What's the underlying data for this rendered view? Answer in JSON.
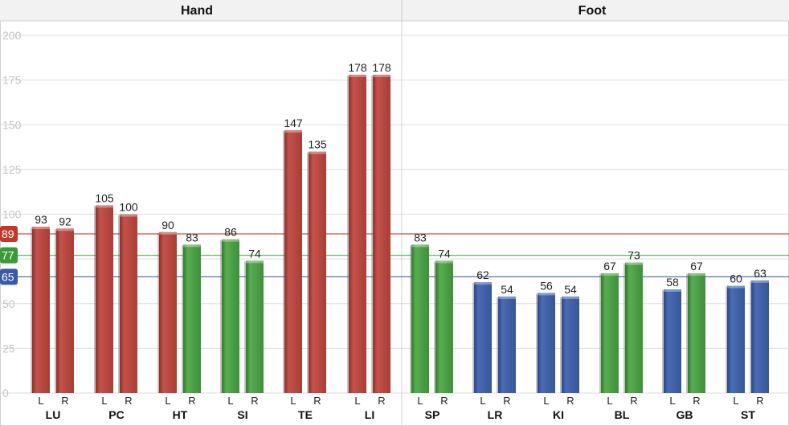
{
  "chart_data": {
    "type": "bar",
    "panels": [
      {
        "title": "Hand",
        "categories": [
          "LU",
          "PC",
          "HT",
          "SI",
          "TE",
          "LI"
        ],
        "bars": [
          {
            "L": 93,
            "R": 92
          },
          {
            "L": 105,
            "R": 100
          },
          {
            "L": 90,
            "R": 83
          },
          {
            "L": 86,
            "R": 74
          },
          {
            "L": 147,
            "R": 135
          },
          {
            "L": 178,
            "R": 178
          }
        ]
      },
      {
        "title": "Foot",
        "categories": [
          "SP",
          "LR",
          "KI",
          "BL",
          "GB",
          "ST"
        ],
        "bars": [
          {
            "L": 83,
            "R": 74
          },
          {
            "L": 62,
            "R": 54
          },
          {
            "L": 56,
            "R": 54
          },
          {
            "L": 67,
            "R": 73
          },
          {
            "L": 58,
            "R": 67
          },
          {
            "L": 60,
            "R": 63
          }
        ]
      }
    ],
    "side_labels": [
      "L",
      "R"
    ],
    "ylim": [
      0,
      200
    ],
    "yticks": [
      0,
      25,
      50,
      75,
      100,
      125,
      150,
      175,
      200
    ],
    "reference_lines": [
      {
        "label": "89",
        "value": 89,
        "color": "#c0392b"
      },
      {
        "label": "77",
        "value": 77,
        "color": "#3a9a3a"
      },
      {
        "label": "65",
        "value": 65,
        "color": "#3a5aa8"
      }
    ],
    "colors": {
      "high": "#b5453e",
      "mid": "#4a9a44",
      "low": "#3d5ea6",
      "grid": "#dedede",
      "header_bg": "#f2f2f2"
    },
    "grid": true
  }
}
